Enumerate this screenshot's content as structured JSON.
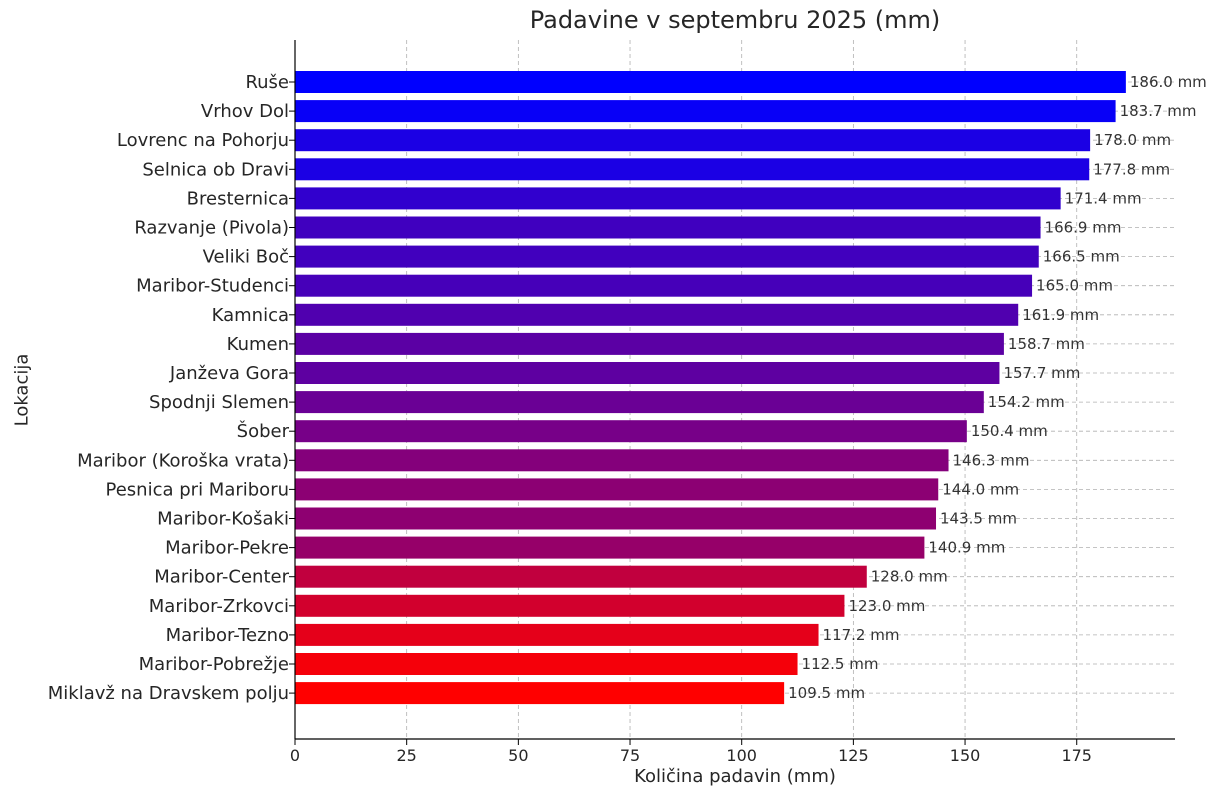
{
  "chart_data": {
    "type": "bar",
    "orientation": "horizontal",
    "title": "Padavine v septembru 2025 (mm)",
    "xlabel": "Količina padavin (mm)",
    "ylabel": "Lokacija",
    "xlim": [
      0,
      197
    ],
    "xticks": [
      0,
      25,
      50,
      75,
      100,
      125,
      150,
      175
    ],
    "grid": true,
    "value_suffix": " mm",
    "color_start": "#0000ff",
    "color_end": "#ff0000",
    "categories": [
      "Ruše",
      "Vrhov Dol",
      "Lovrenc na Pohorju",
      "Selnica ob Dravi",
      "Bresternica",
      "Razvanje (Pivola)",
      "Veliki Boč",
      "Maribor-Studenci",
      "Kamnica",
      "Kumen",
      "Janževa Gora",
      "Spodnji Slemen",
      "Šober",
      "Maribor (Koroška vrata)",
      "Pesnica pri Mariboru",
      "Maribor-Košaki",
      "Maribor-Pekre",
      "Maribor-Center",
      "Maribor-Zrkovci",
      "Maribor-Tezno",
      "Maribor-Pobrežje",
      "Miklavž na Dravskem polju"
    ],
    "values": [
      186.0,
      183.7,
      178.0,
      177.8,
      171.4,
      166.9,
      166.5,
      165.0,
      161.9,
      158.7,
      157.7,
      154.2,
      150.4,
      146.3,
      144.0,
      143.5,
      140.9,
      128.0,
      123.0,
      117.2,
      112.5,
      109.5
    ]
  }
}
